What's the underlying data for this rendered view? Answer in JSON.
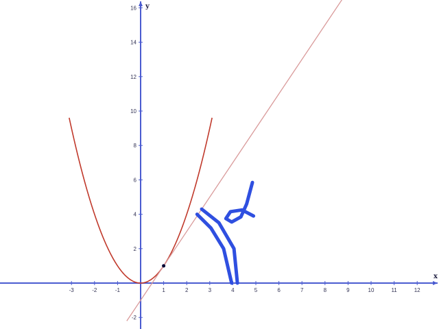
{
  "chart_data": {
    "type": "line",
    "title": "",
    "xlabel": "x",
    "ylabel": "y",
    "xlim": [
      -3.6,
      12.9
    ],
    "ylim": [
      -2.4,
      16.4
    ],
    "x_ticks": [
      -3,
      -2,
      -1,
      1,
      2,
      3,
      4,
      5,
      6,
      7,
      8,
      9,
      10,
      11,
      12
    ],
    "y_ticks": [
      -2,
      2,
      4,
      6,
      8,
      10,
      12,
      14,
      16
    ],
    "grid": false,
    "series": [
      {
        "kind": "curve",
        "equation": "y = x^2",
        "color": "#c0392b",
        "x_range": [
          -3.1,
          3.1
        ]
      },
      {
        "kind": "tangent-line",
        "equation": "y = 2x - 1",
        "color": "#d99a9a",
        "x_range": [
          -0.6,
          9
        ]
      }
    ],
    "points": [
      {
        "x": 1,
        "y": 1,
        "color": "#000033"
      }
    ],
    "annotations": [
      {
        "kind": "handwritten-angle-marks",
        "color": "#2f4fe0",
        "strokes": [
          [
            [
              2.45,
              4.0
            ],
            [
              3.05,
              3.2
            ],
            [
              3.6,
              2.0
            ],
            [
              3.95,
              0.0
            ]
          ],
          [
            [
              2.65,
              4.3
            ],
            [
              3.4,
              3.5
            ],
            [
              4.05,
              2.0
            ],
            [
              4.2,
              0.0
            ]
          ]
        ]
      },
      {
        "kind": "handwritten-alpha",
        "color": "#2f4fe0",
        "strokes": [
          [
            [
              4.9,
              3.9
            ],
            [
              4.4,
              4.25
            ],
            [
              3.9,
              4.15
            ],
            [
              3.7,
              3.75
            ],
            [
              3.95,
              3.55
            ],
            [
              4.35,
              3.85
            ],
            [
              4.6,
              4.6
            ],
            [
              4.85,
              5.85
            ]
          ]
        ]
      }
    ]
  },
  "axis_labels": {
    "x": "x",
    "y": "y"
  },
  "colors": {
    "axis": "#4a5bd0",
    "tick_text": "#333355"
  }
}
